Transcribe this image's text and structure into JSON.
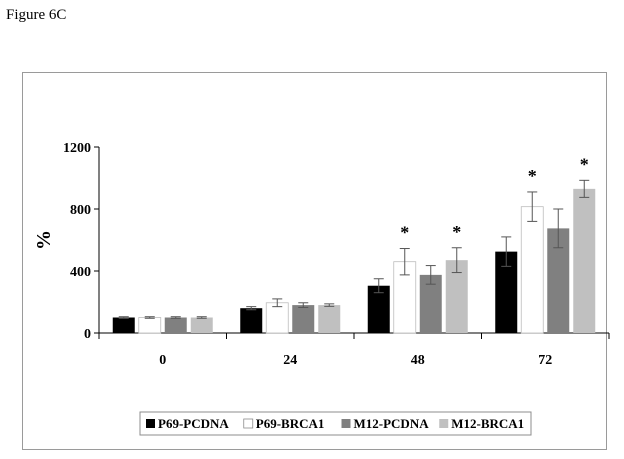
{
  "figure_label": "Figure 6C",
  "chart_data": {
    "type": "bar",
    "categories": [
      "0",
      "24",
      "48",
      "72"
    ],
    "ylabel": "%",
    "xlabel": "",
    "ylim": [
      0,
      1200
    ],
    "yticks": [
      0,
      400,
      800,
      1200
    ],
    "yticklabels": [
      "0",
      "400",
      "800",
      "1200"
    ],
    "grid": false,
    "legend_position": "bottom",
    "error_bars": true,
    "series": [
      {
        "name": "P69-PCDNA",
        "color": "#000000",
        "values": [
          100,
          160,
          305,
          525
        ],
        "errors": [
          5,
          10,
          45,
          95
        ]
      },
      {
        "name": "P69-BRCA1",
        "color": "#ffffff",
        "values": [
          100,
          195,
          460,
          815
        ],
        "errors": [
          5,
          25,
          85,
          95
        ]
      },
      {
        "name": "M12-PCDNA",
        "color": "#808080",
        "values": [
          100,
          180,
          375,
          675
        ],
        "errors": [
          5,
          15,
          60,
          125
        ]
      },
      {
        "name": "M12-BRCA1",
        "color": "#c0c0c0",
        "values": [
          100,
          180,
          470,
          930
        ],
        "errors": [
          5,
          8,
          80,
          55
        ]
      }
    ],
    "annotations": [
      {
        "text": "*",
        "category": "48",
        "series": "P69-BRCA1"
      },
      {
        "text": "*",
        "category": "48",
        "series": "M12-BRCA1"
      },
      {
        "text": "*",
        "category": "72",
        "series": "P69-BRCA1"
      },
      {
        "text": "*",
        "category": "72",
        "series": "M12-BRCA1"
      }
    ]
  }
}
